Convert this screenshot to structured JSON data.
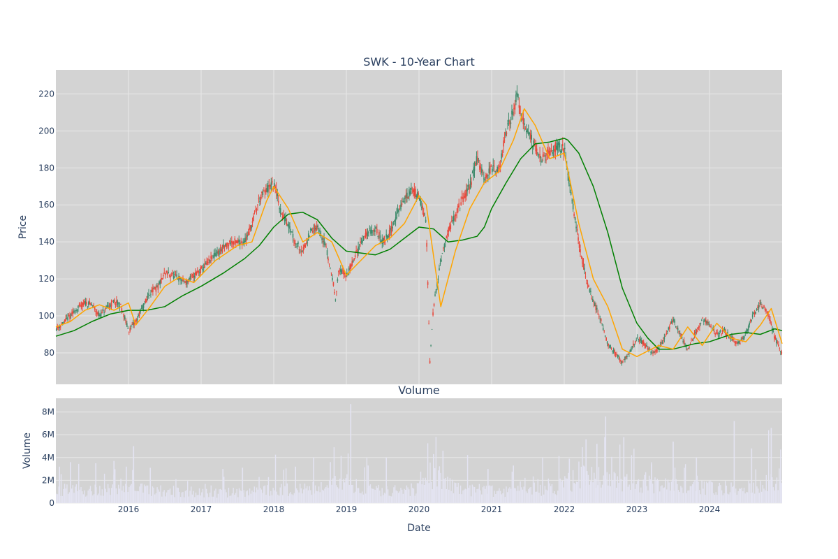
{
  "colors": {
    "background": "#ffffff",
    "plot_bg": "#d3d3d3",
    "grid": "#e8e8e8",
    "text": "#2a3f5f",
    "candle_up": "#3d8a6a",
    "candle_down": "#e8473a",
    "ma_short": "#ffa500",
    "ma_long": "#008000",
    "volume_bar": "#e4e4f2"
  },
  "chart_data": [
    {
      "type": "candlestick",
      "title": "SWK - 10-Year Chart",
      "ylabel": "Price",
      "xlabel": "",
      "xlim": [
        2015.0,
        2025.0
      ],
      "ylim": [
        63,
        233
      ],
      "grid": true,
      "yticks": [
        80,
        100,
        120,
        140,
        160,
        180,
        200,
        220
      ],
      "xticks": [
        2016,
        2017,
        2018,
        2019,
        2020,
        2021,
        2022,
        2023,
        2024
      ],
      "price_path": {
        "x": [
          2015.0,
          2015.1,
          2015.2,
          2015.3,
          2015.4,
          2015.5,
          2015.6,
          2015.7,
          2015.8,
          2015.9,
          2016.0,
          2016.1,
          2016.2,
          2016.3,
          2016.4,
          2016.5,
          2016.6,
          2016.7,
          2016.8,
          2016.9,
          2017.0,
          2017.2,
          2017.4,
          2017.6,
          2017.7,
          2017.8,
          2017.9,
          2018.0,
          2018.05,
          2018.1,
          2018.2,
          2018.3,
          2018.4,
          2018.5,
          2018.6,
          2018.7,
          2018.8,
          2018.85,
          2018.9,
          2019.0,
          2019.1,
          2019.2,
          2019.3,
          2019.4,
          2019.5,
          2019.6,
          2019.7,
          2019.8,
          2019.9,
          2020.0,
          2020.1,
          2020.15,
          2020.2,
          2020.22,
          2020.3,
          2020.4,
          2020.5,
          2020.6,
          2020.7,
          2020.8,
          2020.9,
          2021.0,
          2021.1,
          2021.2,
          2021.3,
          2021.35,
          2021.4,
          2021.5,
          2021.6,
          2021.7,
          2021.8,
          2021.9,
          2022.0,
          2022.1,
          2022.2,
          2022.3,
          2022.4,
          2022.5,
          2022.6,
          2022.7,
          2022.8,
          2022.9,
          2023.0,
          2023.1,
          2023.2,
          2023.3,
          2023.4,
          2023.5,
          2023.6,
          2023.7,
          2023.8,
          2023.9,
          2024.0,
          2024.1,
          2024.2,
          2024.3,
          2024.4,
          2024.5,
          2024.6,
          2024.7,
          2024.8,
          2024.9,
          2025.0
        ],
        "y": [
          93,
          96,
          100,
          104,
          107,
          106,
          100,
          104,
          108,
          105,
          92,
          97,
          105,
          113,
          115,
          123,
          122,
          120,
          118,
          122,
          125,
          133,
          140,
          140,
          150,
          163,
          168,
          171,
          165,
          155,
          150,
          140,
          135,
          145,
          148,
          140,
          122,
          110,
          125,
          122,
          130,
          140,
          145,
          147,
          140,
          145,
          155,
          163,
          168,
          165,
          150,
          75,
          105,
          110,
          130,
          145,
          155,
          163,
          170,
          185,
          175,
          180,
          178,
          200,
          210,
          220,
          210,
          200,
          190,
          185,
          188,
          192,
          190,
          165,
          140,
          120,
          108,
          98,
          85,
          80,
          75,
          80,
          88,
          85,
          80,
          82,
          90,
          98,
          90,
          82,
          90,
          98,
          95,
          90,
          92,
          88,
          85,
          90,
          100,
          107,
          102,
          88,
          80
        ]
      },
      "series": [
        {
          "style": "line",
          "x": [
            2015.0,
            2015.25,
            2015.5,
            2015.75,
            2016.0,
            2016.25,
            2016.5,
            2016.75,
            2017.0,
            2017.3,
            2017.6,
            2017.8,
            2018.0,
            2018.2,
            2018.4,
            2018.6,
            2018.8,
            2019.0,
            2019.2,
            2019.4,
            2019.6,
            2019.8,
            2020.0,
            2020.2,
            2020.4,
            2020.6,
            2020.8,
            2020.9,
            2021.0,
            2021.2,
            2021.4,
            2021.6,
            2021.8,
            2022.0,
            2022.05,
            2022.2,
            2022.4,
            2022.6,
            2022.8,
            2023.0,
            2023.15,
            2023.3,
            2023.5,
            2023.8,
            2024.0,
            2024.3,
            2024.5,
            2024.7,
            2024.9,
            2025.0
          ],
          "y": [
            89,
            92,
            97,
            101,
            103,
            103,
            105,
            111,
            116,
            123,
            131,
            138,
            148,
            155,
            156,
            152,
            142,
            135,
            134,
            133,
            136,
            142,
            148,
            147,
            140,
            141,
            143,
            148,
            158,
            172,
            185,
            193,
            194,
            196,
            195,
            188,
            170,
            145,
            115,
            96,
            88,
            82,
            82,
            85,
            86,
            90,
            91,
            90,
            93,
            92
          ]
        },
        {
          "style": "line",
          "x": [
            2015.0,
            2015.2,
            2015.4,
            2015.6,
            2015.8,
            2016.0,
            2016.1,
            2016.3,
            2016.5,
            2016.7,
            2016.9,
            2017.2,
            2017.5,
            2017.7,
            2017.9,
            2018.0,
            2018.2,
            2018.4,
            2018.6,
            2018.8,
            2019.0,
            2019.2,
            2019.4,
            2019.6,
            2019.8,
            2020.0,
            2020.1,
            2020.3,
            2020.5,
            2020.7,
            2020.9,
            2021.1,
            2021.3,
            2021.45,
            2021.6,
            2021.8,
            2022.0,
            2022.2,
            2022.4,
            2022.6,
            2022.8,
            2023.0,
            2023.3,
            2023.5,
            2023.7,
            2023.9,
            2024.1,
            2024.3,
            2024.5,
            2024.7,
            2024.85,
            2025.0
          ],
          "y": [
            94,
            97,
            103,
            106,
            103,
            107,
            95,
            105,
            116,
            121,
            118,
            130,
            138,
            140,
            162,
            170,
            158,
            140,
            145,
            140,
            122,
            130,
            138,
            142,
            150,
            165,
            160,
            105,
            135,
            158,
            172,
            178,
            195,
            212,
            203,
            185,
            188,
            150,
            120,
            105,
            82,
            78,
            84,
            82,
            94,
            84,
            96,
            88,
            86,
            95,
            104,
            85
          ]
        }
      ]
    },
    {
      "type": "bar",
      "title": "Volume",
      "ylabel": "Volume",
      "xlabel": "Date",
      "xlim": [
        2015.0,
        2025.0
      ],
      "ylim": [
        0,
        9200000
      ],
      "grid": true,
      "yticks": [
        0,
        2000000,
        4000000,
        6000000,
        8000000
      ],
      "ytick_labels": [
        "0",
        "2M",
        "4M",
        "6M",
        "8M"
      ],
      "xticks": [
        2016,
        2017,
        2018,
        2019,
        2020,
        2021,
        2022,
        2023,
        2024
      ],
      "base_volume": {
        "x": [
          2015.0,
          2015.5,
          2016.0,
          2016.5,
          2017.0,
          2017.5,
          2018.0,
          2018.5,
          2018.9,
          2019.2,
          2019.6,
          2020.0,
          2020.2,
          2020.5,
          2021.0,
          2021.5,
          2021.9,
          2022.2,
          2022.5,
          2022.8,
          2023.0,
          2023.5,
          2024.0,
          2024.5,
          2024.8,
          2025.0
        ],
        "y": [
          1300000,
          1250000,
          1500000,
          1150000,
          1050000,
          1000000,
          1350000,
          1300000,
          2200000,
          1400000,
          1200000,
          1400000,
          2700000,
          1400000,
          1200000,
          1100000,
          1500000,
          2500000,
          2400000,
          2000000,
          1900000,
          1600000,
          1500000,
          1500000,
          2000000,
          2600000
        ]
      },
      "spikes": [
        {
          "x": 2015.05,
          "y": 3200000
        },
        {
          "x": 2015.2,
          "y": 3600000
        },
        {
          "x": 2015.55,
          "y": 3500000
        },
        {
          "x": 2015.8,
          "y": 3700000
        },
        {
          "x": 2015.97,
          "y": 3200000
        },
        {
          "x": 2016.07,
          "y": 5000000
        },
        {
          "x": 2016.3,
          "y": 3100000
        },
        {
          "x": 2017.3,
          "y": 3000000
        },
        {
          "x": 2017.57,
          "y": 3100000
        },
        {
          "x": 2018.3,
          "y": 3200000
        },
        {
          "x": 2018.55,
          "y": 4000000
        },
        {
          "x": 2018.78,
          "y": 3600000
        },
        {
          "x": 2019.06,
          "y": 8700000
        },
        {
          "x": 2019.3,
          "y": 3300000
        },
        {
          "x": 2019.55,
          "y": 4000000
        },
        {
          "x": 2020.2,
          "y": 4300000
        },
        {
          "x": 2020.33,
          "y": 4600000
        },
        {
          "x": 2020.95,
          "y": 3000000
        },
        {
          "x": 2021.3,
          "y": 3300000
        },
        {
          "x": 2022.07,
          "y": 3900000
        },
        {
          "x": 2022.3,
          "y": 5600000
        },
        {
          "x": 2022.45,
          "y": 5200000
        },
        {
          "x": 2022.57,
          "y": 7600000
        },
        {
          "x": 2022.82,
          "y": 5800000
        },
        {
          "x": 2023.2,
          "y": 3400000
        },
        {
          "x": 2023.5,
          "y": 5400000
        },
        {
          "x": 2023.82,
          "y": 4000000
        },
        {
          "x": 2024.34,
          "y": 7200000
        },
        {
          "x": 2024.58,
          "y": 4800000
        },
        {
          "x": 2024.85,
          "y": 6600000
        },
        {
          "x": 2024.98,
          "y": 4700000
        }
      ]
    }
  ]
}
